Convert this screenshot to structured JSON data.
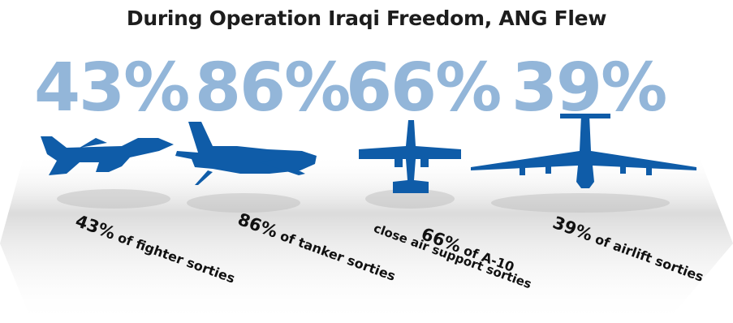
{
  "title": "During Operation Iraqi Freedom, ANG Flew",
  "colors": {
    "big_percent": "#93b6d9",
    "aircraft": "#0f5ca8",
    "label_text": "#111111",
    "floor": "#c8c8c8"
  },
  "stats": [
    {
      "percent": "43%",
      "value": 43,
      "icon": "fighter-jet-icon",
      "label_pct": "43%",
      "label_text": " of fighter sorties"
    },
    {
      "percent": "86%",
      "value": 86,
      "icon": "tanker-aircraft-icon",
      "label_pct": "86%",
      "label_text": " of tanker sorties"
    },
    {
      "percent": "66%",
      "value": 66,
      "icon": "a10-aircraft-icon",
      "label_pct": "66%",
      "label_text": " of A-10",
      "label_subtext": "close air support sorties"
    },
    {
      "percent": "39%",
      "value": 39,
      "icon": "airlift-aircraft-icon",
      "label_pct": "39%",
      "label_text": " of airlift sorties"
    }
  ]
}
